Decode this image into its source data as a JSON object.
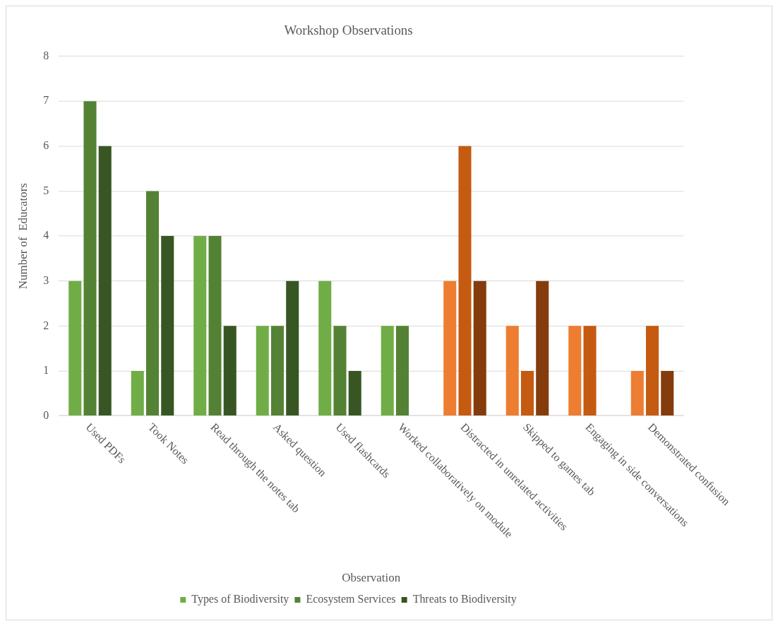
{
  "chart_data": {
    "type": "bar",
    "title": "Workshop Observations",
    "xlabel": "Observation",
    "ylabel": "Number of  Educators",
    "categories": [
      "Used PDFs",
      "Took Notes",
      "Read through the notes tab",
      "Asked question",
      "Used flashcards",
      "Worked collaboratively on module",
      "Distracted in unrelated activities",
      "Skipped to games tab",
      "Engaging in side conversations",
      "Demonstrated confusion"
    ],
    "series": [
      {
        "name": "Types of Biodiversity",
        "color": "#70ad47",
        "colors": [
          "#70ad47",
          "#70ad47",
          "#70ad47",
          "#70ad47",
          "#70ad47",
          "#70ad47",
          "#ed7d31",
          "#ed7d31",
          "#ed7d31",
          "#ed7d31"
        ],
        "values": [
          3,
          1,
          4,
          2,
          3,
          2,
          3,
          2,
          2,
          1
        ]
      },
      {
        "name": "Ecosystem Services",
        "color": "#548235",
        "colors": [
          "#548235",
          "#548235",
          "#548235",
          "#548235",
          "#548235",
          "#548235",
          "#c55a11",
          "#c55a11",
          "#c55a11",
          "#c55a11"
        ],
        "values": [
          7,
          5,
          4,
          2,
          2,
          2,
          6,
          1,
          2,
          2
        ]
      },
      {
        "name": "Threats to Biodiversity",
        "color": "#375623",
        "colors": [
          "#375623",
          "#375623",
          "#375623",
          "#375623",
          "#375623",
          "#375623",
          "#843c0c",
          "#843c0c",
          "#843c0c",
          "#843c0c"
        ],
        "values": [
          6,
          4,
          2,
          3,
          1,
          0,
          3,
          3,
          0,
          1
        ]
      }
    ],
    "ylim": [
      0,
      8
    ],
    "yticks": [
      0,
      1,
      2,
      3,
      4,
      5,
      6,
      7,
      8
    ],
    "grid": "y",
    "legend": "bottom"
  }
}
